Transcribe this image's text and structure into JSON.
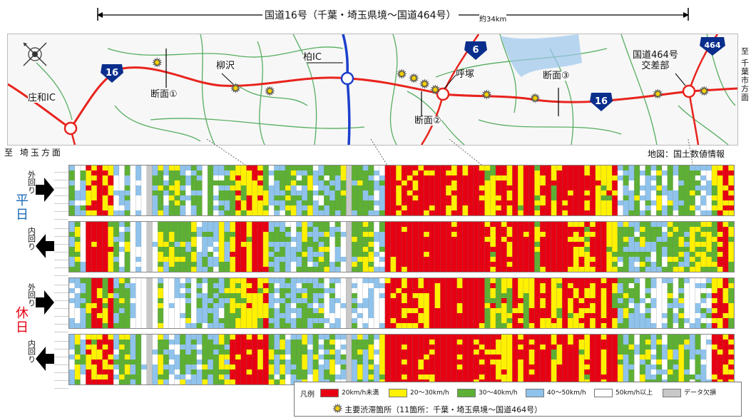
{
  "header": {
    "route_title": "国道16号（千葉・埼玉県境〜国道464号）",
    "distance": "約34km"
  },
  "map": {
    "route_labels": {
      "r16": "16",
      "r6": "6",
      "r464": "464"
    },
    "places": {
      "shouwa_ic": "庄和IC",
      "yanagisawa": "柳沢",
      "kashiwa_ic": "柏IC",
      "kokyou": "呼塚",
      "route464_junction": "国道464号\n交差部",
      "section1": "断面①",
      "section2": "断面②",
      "section3": "断面③"
    },
    "direction_left": "至 埼玉方面",
    "direction_right": "至 千葉市方面",
    "source_note": "地図：国土数値情報"
  },
  "bands": {
    "weekday_label": "平日",
    "holiday_label": "休日",
    "outer_label": "外回り",
    "inner_label": "内回り"
  },
  "legend": {
    "title": "凡例",
    "items": [
      {
        "label": "20km/h未満",
        "color": "#e60012"
      },
      {
        "label": "20〜30km/h",
        "color": "#fff100"
      },
      {
        "label": "30〜40km/h",
        "color": "#5db034"
      },
      {
        "label": "40〜50km/h",
        "color": "#8fc3ec"
      },
      {
        "label": "50km/h以上",
        "color": "#ffffff"
      },
      {
        "label": "データ欠損",
        "color": "#c8c8c8"
      }
    ],
    "star_label": "主要渋滞箇所（11箇所：千葉・埼玉県境〜国道464号）"
  },
  "colors": {
    "red": "#e60012",
    "yellow": "#fff100",
    "green": "#5db034",
    "blue": "#8fc3ec",
    "white": "#ffffff",
    "gray": "#c8c8c8",
    "road_red": "#e8231d",
    "road_blue": "#1d3fcc",
    "road_green": "#3aa145",
    "shield_blue": "#0a2e8c"
  }
}
